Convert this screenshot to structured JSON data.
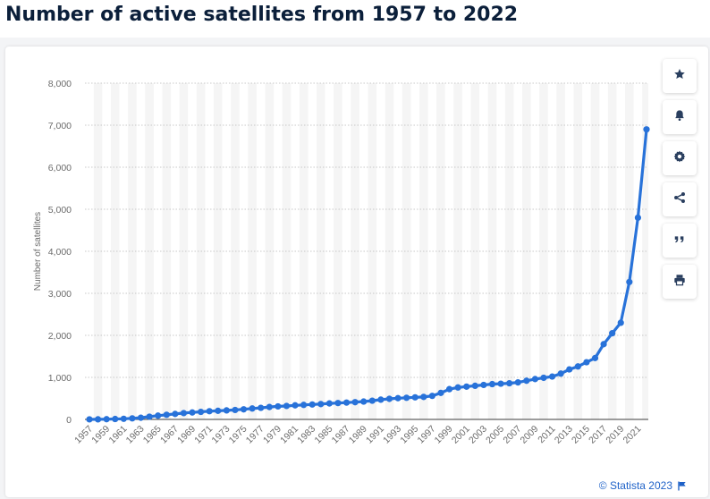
{
  "page": {
    "title": "Number of active satellites from 1957 to 2022"
  },
  "toolbar": {
    "buttons": [
      {
        "name": "bookmark",
        "icon": "star-icon"
      },
      {
        "name": "notification",
        "icon": "bell-icon"
      },
      {
        "name": "settings",
        "icon": "gear-icon"
      },
      {
        "name": "share",
        "icon": "share-icon"
      },
      {
        "name": "cite",
        "icon": "quote-icon"
      },
      {
        "name": "print",
        "icon": "printer-icon"
      }
    ]
  },
  "credit": {
    "label": "© Statista 2023",
    "icon": "flag-icon"
  },
  "colors": {
    "line": "#2872d9",
    "band": "#f5f5f5",
    "grid": "#c8c8c8",
    "axis_text": "#6b6b6b",
    "title": "#0b1f3a",
    "credit": "#1f62c8"
  },
  "chart_data": {
    "type": "line",
    "title": "",
    "xlabel": "",
    "ylabel": "Number of satellites",
    "ylim": [
      0,
      8000
    ],
    "yticks": [
      0,
      1000,
      2000,
      3000,
      4000,
      5000,
      6000,
      7000,
      8000
    ],
    "ytick_labels": [
      "0",
      "1,000",
      "2,000",
      "3,000",
      "4,000",
      "5,000",
      "6,000",
      "7,000",
      "8,000"
    ],
    "xtick_labels": [
      "1957",
      "1959",
      "1961",
      "1963",
      "1965",
      "1967",
      "1969",
      "1971",
      "1973",
      "1975",
      "1977",
      "1979",
      "1981",
      "1983",
      "1985",
      "1987",
      "1989",
      "1991",
      "1993",
      "1995",
      "1997",
      "1999",
      "2001",
      "2003",
      "2005",
      "2007",
      "2009",
      "2011",
      "2013",
      "2015",
      "2017",
      "2019",
      "2021"
    ],
    "grid": true,
    "legend": "none",
    "x": [
      1957,
      1958,
      1959,
      1960,
      1961,
      1962,
      1963,
      1964,
      1965,
      1966,
      1967,
      1968,
      1969,
      1970,
      1971,
      1972,
      1973,
      1974,
      1975,
      1976,
      1977,
      1978,
      1979,
      1980,
      1981,
      1982,
      1983,
      1984,
      1985,
      1986,
      1987,
      1988,
      1989,
      1990,
      1991,
      1992,
      1993,
      1994,
      1995,
      1996,
      1997,
      1998,
      1999,
      2000,
      2001,
      2002,
      2003,
      2004,
      2005,
      2006,
      2007,
      2008,
      2009,
      2010,
      2011,
      2012,
      2013,
      2014,
      2015,
      2016,
      2017,
      2018,
      2019,
      2020,
      2021,
      2022
    ],
    "series": [
      {
        "values": [
          1,
          2,
          5,
          10,
          15,
          25,
          40,
          65,
          90,
          110,
          130,
          150,
          165,
          180,
          195,
          205,
          215,
          225,
          240,
          260,
          275,
          295,
          310,
          320,
          335,
          345,
          355,
          365,
          380,
          390,
          400,
          410,
          425,
          445,
          470,
          490,
          505,
          515,
          525,
          535,
          560,
          630,
          720,
          760,
          780,
          800,
          820,
          840,
          850,
          860,
          880,
          920,
          960,
          990,
          1020,
          1090,
          1190,
          1260,
          1360,
          1460,
          1790,
          2050,
          2300,
          3270,
          4800,
          6900
        ]
      }
    ]
  }
}
